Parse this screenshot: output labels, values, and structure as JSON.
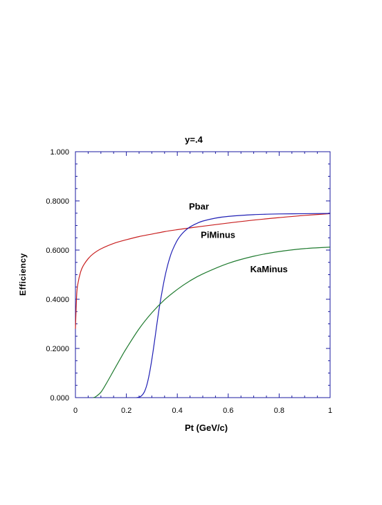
{
  "chart_data": {
    "type": "line",
    "title": "y=.4",
    "xlabel": "Pt (GeV/c)",
    "ylabel": "Efficiency",
    "xlim": [
      0,
      1
    ],
    "ylim": [
      0,
      1
    ],
    "x_ticks": [
      "0",
      "0.2",
      "0.4",
      "0.6",
      "0.8",
      "1"
    ],
    "y_ticks": [
      "0.000",
      "0.2000",
      "0.4000",
      "0.6000",
      "0.8000",
      "1.000"
    ],
    "x_tick_values": [
      0,
      0.2,
      0.4,
      0.6,
      0.8,
      1
    ],
    "y_tick_values": [
      0,
      0.2,
      0.4,
      0.6,
      0.8,
      1
    ],
    "grid": false,
    "frame_color": "#1a1aa0",
    "series": [
      {
        "name": "Pbar",
        "color": "#c81e1e",
        "x": [
          0.0,
          0.005,
          0.01,
          0.02,
          0.03,
          0.05,
          0.07,
          0.1,
          0.15,
          0.2,
          0.25,
          0.3,
          0.35,
          0.4,
          0.5,
          0.6,
          0.7,
          0.8,
          0.9,
          1.0
        ],
        "y": [
          0.28,
          0.42,
          0.465,
          0.51,
          0.535,
          0.565,
          0.585,
          0.605,
          0.627,
          0.642,
          0.655,
          0.665,
          0.675,
          0.683,
          0.697,
          0.71,
          0.722,
          0.732,
          0.741,
          0.748
        ]
      },
      {
        "name": "PiMinus",
        "color": "#1e1eb4",
        "x": [
          0.24,
          0.25,
          0.26,
          0.27,
          0.28,
          0.29,
          0.3,
          0.31,
          0.32,
          0.33,
          0.34,
          0.35,
          0.36,
          0.37,
          0.38,
          0.4,
          0.42,
          0.44,
          0.46,
          0.48,
          0.5,
          0.55,
          0.6,
          0.7,
          0.8,
          0.9,
          1.0
        ],
        "y": [
          0.0,
          0.002,
          0.008,
          0.022,
          0.05,
          0.095,
          0.155,
          0.225,
          0.3,
          0.37,
          0.43,
          0.485,
          0.53,
          0.567,
          0.597,
          0.64,
          0.668,
          0.687,
          0.7,
          0.71,
          0.718,
          0.73,
          0.737,
          0.744,
          0.747,
          0.748,
          0.749
        ]
      },
      {
        "name": "KaMinus",
        "color": "#1e7a2e",
        "x": [
          0.07,
          0.08,
          0.1,
          0.12,
          0.15,
          0.18,
          0.2,
          0.25,
          0.3,
          0.35,
          0.4,
          0.45,
          0.5,
          0.6,
          0.7,
          0.8,
          0.9,
          1.0
        ],
        "y": [
          0.0,
          0.004,
          0.022,
          0.055,
          0.11,
          0.165,
          0.2,
          0.28,
          0.345,
          0.398,
          0.44,
          0.475,
          0.503,
          0.546,
          0.575,
          0.594,
          0.606,
          0.612
        ]
      }
    ],
    "annotations": [
      {
        "text": "Pbar",
        "x": 0.485,
        "y": 0.765
      },
      {
        "text": "PiMinus",
        "x": 0.56,
        "y": 0.65
      },
      {
        "text": "KaMinus",
        "x": 0.76,
        "y": 0.51
      }
    ]
  }
}
